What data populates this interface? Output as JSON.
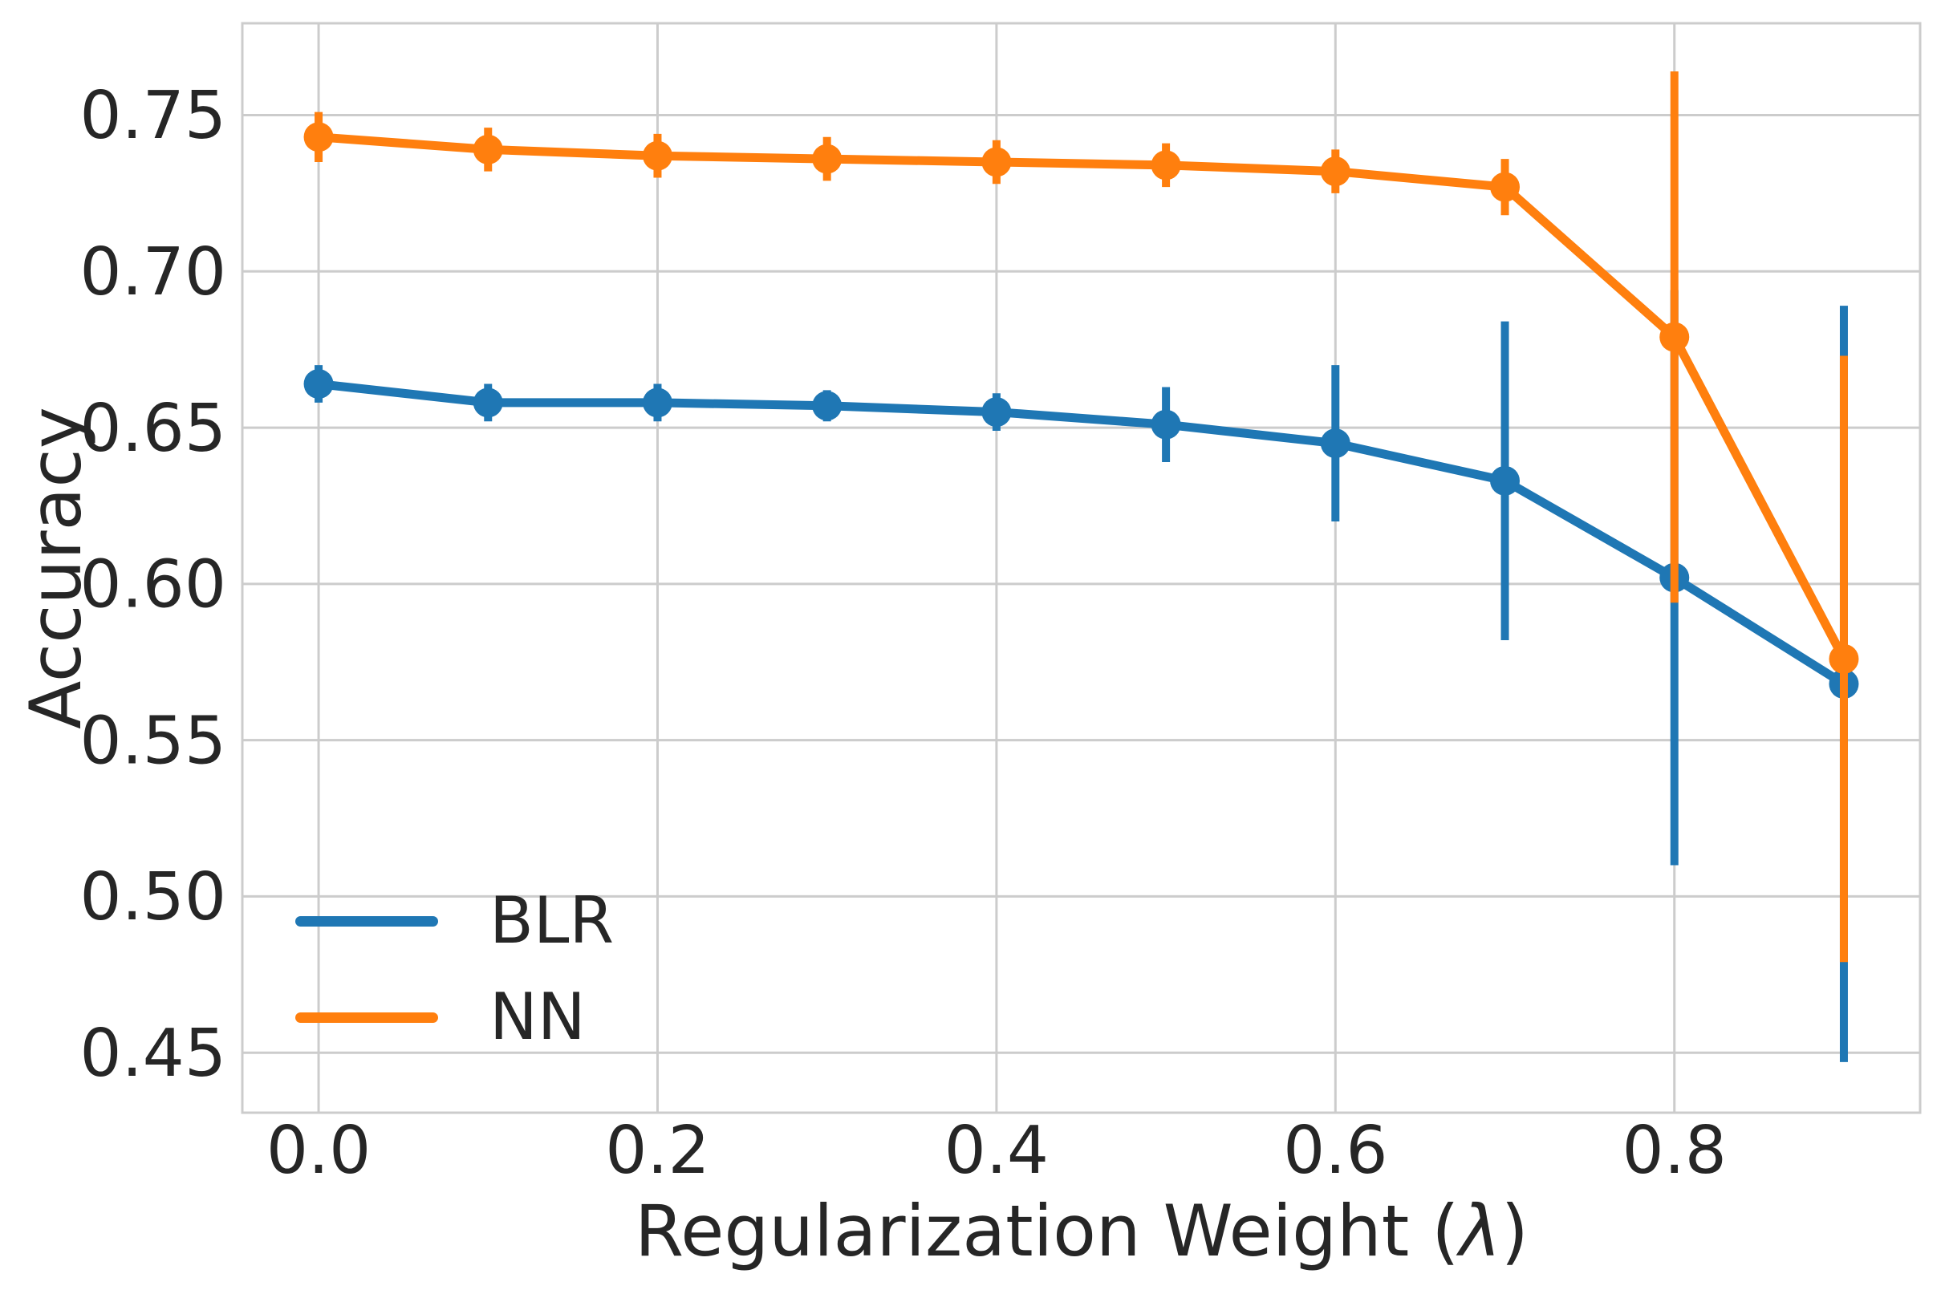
{
  "figure": {
    "background": "#ffffff",
    "text_color": "#262626",
    "grid_color": "#cccccc",
    "spine_color": "#cccccc"
  },
  "chart_data": {
    "type": "line",
    "title": "",
    "xlabel": "Regularization Weight (λ)",
    "xlabel_parts": {
      "prefix": "Regularization Weight (",
      "lambda": "λ",
      "suffix": ")"
    },
    "ylabel": "Accuracy",
    "x": [
      0.0,
      0.1,
      0.2,
      0.3,
      0.4,
      0.5,
      0.6,
      0.7,
      0.8,
      0.9
    ],
    "series": [
      {
        "name": "BLR",
        "color": "#1f77b4",
        "values": [
          0.664,
          0.658,
          0.658,
          0.657,
          0.655,
          0.651,
          0.645,
          0.633,
          0.602,
          0.568
        ],
        "yerr": [
          0.006,
          0.006,
          0.006,
          0.005,
          0.006,
          0.012,
          0.025,
          0.051,
          0.092,
          0.121
        ]
      },
      {
        "name": "NN",
        "color": "#ff7f0e",
        "values": [
          0.743,
          0.739,
          0.737,
          0.736,
          0.735,
          0.734,
          0.732,
          0.727,
          0.679,
          0.576
        ],
        "yerr": [
          0.008,
          0.007,
          0.007,
          0.007,
          0.007,
          0.007,
          0.007,
          0.009,
          0.085,
          0.097
        ]
      }
    ],
    "xticks": {
      "values": [
        0.0,
        0.2,
        0.4,
        0.6,
        0.8
      ],
      "labels": [
        "0.0",
        "0.2",
        "0.4",
        "0.6",
        "0.8"
      ]
    },
    "yticks": {
      "values": [
        0.45,
        0.5,
        0.55,
        0.6,
        0.65,
        0.7,
        0.75
      ],
      "labels": [
        "0.45",
        "0.50",
        "0.55",
        "0.60",
        "0.65",
        "0.70",
        "0.75"
      ]
    },
    "xlim": [
      -0.045,
      0.945
    ],
    "ylim": [
      0.4308,
      0.7794
    ],
    "grid": true,
    "error_bars": true,
    "marker": "circle",
    "legend": {
      "position": "lower left",
      "entries": [
        "BLR",
        "NN"
      ]
    }
  }
}
